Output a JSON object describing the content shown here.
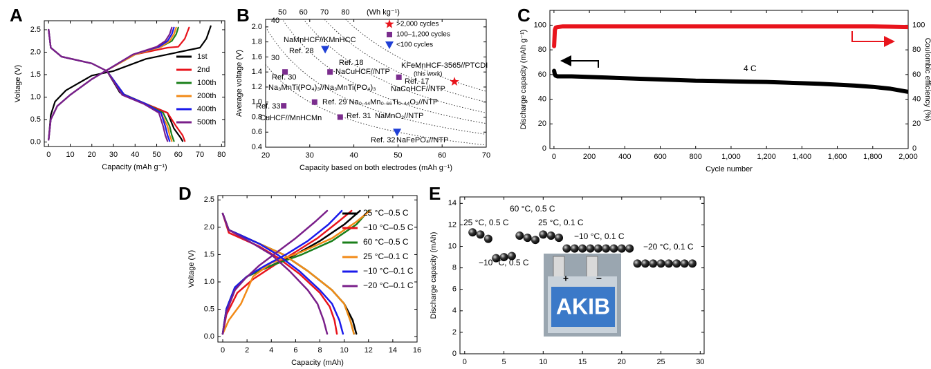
{
  "chart_data": [
    {
      "type": "line",
      "panel": "A",
      "xlabel": "Capacity (mAh g⁻¹)",
      "ylabel": "Voltage (V)",
      "xlim": [
        -2,
        81.5
      ],
      "ylim": [
        -0.1,
        2.7
      ],
      "xticks": [
        0,
        10,
        20,
        30,
        40,
        50,
        60,
        70,
        80
      ],
      "yticks": [
        {
          "value": 0,
          "label": "0.0"
        },
        0.5,
        {
          "value": 1,
          "label": "1.0"
        },
        1.5,
        {
          "value": 2,
          "label": "2.0"
        },
        2.5
      ],
      "legend": "upper right",
      "series": [
        {
          "name": "1st",
          "color": "#000000",
          "x": [
            0,
            1,
            3,
            8,
            20,
            30,
            45,
            60,
            70,
            73,
            75,
            null,
            0,
            1,
            6,
            20,
            27,
            33,
            45,
            55,
            58,
            61,
            62
          ],
          "values": [
            0.05,
            0.6,
            0.9,
            1.15,
            1.48,
            1.58,
            1.85,
            2.0,
            2.1,
            2.3,
            2.58,
            null,
            2.5,
            2.1,
            1.9,
            1.75,
            1.58,
            1.1,
            0.85,
            0.65,
            0.3,
            0.1,
            0.02
          ]
        },
        {
          "name": "2nd",
          "color": "#e8141c",
          "x": [
            0,
            1,
            4,
            10,
            20,
            27,
            40,
            55,
            60,
            63,
            65,
            null,
            0,
            1,
            6,
            20,
            27,
            35,
            45,
            55,
            59,
            62,
            63
          ],
          "values": [
            0.05,
            0.5,
            0.8,
            1.05,
            1.4,
            1.6,
            1.95,
            2.1,
            2.12,
            2.3,
            2.55,
            null,
            2.5,
            2.1,
            1.9,
            1.75,
            1.58,
            1.05,
            0.85,
            0.65,
            0.35,
            0.15,
            0.02
          ]
        },
        {
          "name": "100th",
          "color": "#1a7f1a",
          "x": [
            0,
            1,
            4,
            10,
            20,
            27,
            40,
            52,
            57,
            59,
            60,
            null,
            0,
            1,
            6,
            20,
            27,
            35,
            45,
            53,
            56,
            57,
            58
          ],
          "values": [
            0.05,
            0.5,
            0.8,
            1.05,
            1.4,
            1.6,
            1.95,
            2.12,
            2.25,
            2.4,
            2.55,
            null,
            2.5,
            2.1,
            1.9,
            1.75,
            1.58,
            1.05,
            0.85,
            0.65,
            0.35,
            0.15,
            0.02
          ]
        },
        {
          "name": "200th",
          "color": "#f28a17",
          "x": [
            0,
            1,
            4,
            10,
            20,
            27,
            40,
            52,
            56,
            58,
            59,
            null,
            0,
            1,
            6,
            20,
            27,
            35,
            45,
            52,
            55,
            56,
            57
          ],
          "values": [
            0.05,
            0.5,
            0.8,
            1.05,
            1.4,
            1.6,
            1.95,
            2.12,
            2.25,
            2.4,
            2.55,
            null,
            2.5,
            2.1,
            1.9,
            1.75,
            1.58,
            1.05,
            0.85,
            0.65,
            0.35,
            0.15,
            0.02
          ]
        },
        {
          "name": "400th",
          "color": "#1a1aeb",
          "x": [
            0,
            1,
            4,
            10,
            20,
            27,
            39,
            51,
            55,
            57,
            58,
            null,
            0,
            1,
            6,
            20,
            27,
            35,
            45,
            52,
            54,
            55,
            56
          ],
          "values": [
            0.05,
            0.5,
            0.8,
            1.05,
            1.4,
            1.6,
            1.95,
            2.12,
            2.25,
            2.4,
            2.55,
            null,
            2.5,
            2.1,
            1.9,
            1.75,
            1.58,
            1.05,
            0.85,
            0.65,
            0.35,
            0.15,
            0.02
          ]
        },
        {
          "name": "500th",
          "color": "#7a1f8a",
          "x": [
            0,
            1,
            4,
            10,
            20,
            27,
            39,
            50,
            54,
            56,
            57,
            null,
            0,
            1,
            6,
            20,
            27,
            34,
            44,
            51,
            53,
            54,
            55
          ],
          "values": [
            0.05,
            0.5,
            0.8,
            1.05,
            1.4,
            1.6,
            1.95,
            2.12,
            2.25,
            2.4,
            2.55,
            null,
            2.5,
            2.1,
            1.9,
            1.75,
            1.58,
            1.05,
            0.85,
            0.65,
            0.35,
            0.15,
            0.02
          ]
        }
      ]
    },
    {
      "type": "scatter",
      "panel": "B",
      "xlabel": "Capacity based on both electrodes (mAh g⁻¹)",
      "ylabel": "Average voltage (V)",
      "x2label": "(Wh kg⁻¹)",
      "xlim": [
        20,
        70
      ],
      "ylim": [
        0.4,
        2.1
      ],
      "xticks": [
        20,
        30,
        40,
        50,
        60,
        70
      ],
      "yticks": [
        0.4,
        0.6,
        0.8,
        {
          "value": 1,
          "label": "1.0"
        },
        1.2,
        1.4,
        1.6,
        1.8,
        {
          "value": 2,
          "label": "2.0"
        }
      ],
      "contours": [
        30,
        40,
        50,
        60,
        70,
        80
      ],
      "legend": "upper right",
      "groups": [
        {
          "name": ">2,000 cycles",
          "color": "#e8141c",
          "marker": "star"
        },
        {
          "name": "100–1,200 cycles",
          "color": "#7b2d8e",
          "marker": "square"
        },
        {
          "name": "<100 cycles",
          "color": "#1f3fd6",
          "marker": "triangle"
        }
      ],
      "points": [
        {
          "x": 33.5,
          "y": 1.7,
          "group": 2,
          "labels": [
            "NaMnHCF//KMnHCC",
            "Ref. 28"
          ]
        },
        {
          "x": 34.6,
          "y": 1.4,
          "group": 1,
          "labels": [
            "Ref. 18",
            "NaCuHCF//NTP"
          ]
        },
        {
          "x": 24.4,
          "y": 1.4,
          "group": 1,
          "labels": [
            "Ref. 30",
            "Na₃MnTi(PO₄)₃//Na₃MnTi(PO₄)₃"
          ]
        },
        {
          "x": 50.2,
          "y": 1.33,
          "group": 1,
          "labels": [
            "Ref. 17",
            "NaCoHCF//NTP"
          ]
        },
        {
          "x": 62.8,
          "y": 1.27,
          "group": 0,
          "labels": [
            "KFeMnHCF-3565//PTCDI",
            "(this work)"
          ]
        },
        {
          "x": 24.1,
          "y": 0.95,
          "group": 1,
          "labels": [
            "Ref. 33",
            "CuHCF//MnHCMn"
          ]
        },
        {
          "x": 31.1,
          "y": 1.0,
          "group": 1,
          "labels": [
            "Ref. 29 Na₀.₄₄Mn₀.₆₆Ti₀.₄₄O₂//NTP"
          ]
        },
        {
          "x": 36.9,
          "y": 0.8,
          "group": 1,
          "labels": [
            "Ref. 31",
            "NaMnO₂//NTP"
          ]
        },
        {
          "x": 49.8,
          "y": 0.6,
          "group": 2,
          "labels": [
            "Ref. 32",
            "NaFePO₄//NTP"
          ]
        }
      ]
    },
    {
      "type": "line",
      "panel": "C",
      "xlabel": "Cycle number",
      "ylabel": "Discharge capacity (mAh g⁻¹)",
      "y2label": "Coulombic efficiency (%)",
      "xlim": [
        -23,
        2000
      ],
      "ylim": [
        0,
        112
      ],
      "y2lim": [
        0,
        112
      ],
      "xticks": [
        0,
        200,
        400,
        600,
        800,
        {
          "value": 1000,
          "label": "1,000"
        },
        {
          "value": 1200,
          "label": "1,200"
        },
        {
          "value": 1400,
          "label": "1,400"
        },
        {
          "value": 1600,
          "label": "1,600"
        },
        {
          "value": 1800,
          "label": "1,800"
        },
        {
          "value": 2000,
          "label": "2,000"
        }
      ],
      "yticks": [
        0,
        20,
        40,
        60,
        80,
        100
      ],
      "y2ticks": [
        0,
        20,
        40,
        60,
        80,
        100
      ],
      "annotations": [
        "4 C"
      ],
      "series": [
        {
          "name": "Discharge capacity",
          "color": "#000000",
          "x": [
            1,
            5,
            10,
            20,
            50,
            100,
            200,
            300,
            400,
            500,
            600,
            700,
            800,
            900,
            1000,
            1100,
            1200,
            1300,
            1400,
            1500,
            1600,
            1700,
            1800,
            1900,
            2000
          ],
          "values": [
            63,
            60,
            59,
            58.5,
            58.5,
            58.5,
            58,
            57.5,
            57,
            56.5,
            56,
            55.5,
            55,
            54.8,
            54.5,
            54.2,
            54,
            53.5,
            53,
            52.5,
            51.8,
            51,
            50,
            48.5,
            46
          ]
        },
        {
          "name": "Coulombic efficiency",
          "color": "#e8141c",
          "axis": "y2",
          "x": [
            1,
            5,
            10,
            20,
            50,
            100,
            200,
            300,
            400,
            500,
            600,
            700,
            800,
            900,
            1000,
            1100,
            1200,
            1300,
            1400,
            1500,
            1600,
            1700,
            1800,
            1900,
            2000
          ],
          "values": [
            83,
            96,
            98,
            98.5,
            99,
            99,
            99,
            99,
            99,
            99,
            99,
            99,
            99,
            99,
            99,
            99,
            99,
            99,
            99,
            99,
            99,
            99,
            99,
            98.8,
            98.5
          ]
        }
      ]
    },
    {
      "type": "line",
      "panel": "D",
      "xlabel": "Capacity (mAh)",
      "ylabel": "Voltage (V)",
      "xlim": [
        -0.4,
        16
      ],
      "ylim": [
        -0.1,
        2.58
      ],
      "xticks": [
        0,
        2,
        4,
        6,
        8,
        10,
        12,
        14,
        16
      ],
      "yticks": [
        {
          "value": 0,
          "label": "0.0"
        },
        0.5,
        {
          "value": 1,
          "label": "1.0"
        },
        1.5,
        {
          "value": 2,
          "label": "2.0"
        },
        2.5
      ],
      "legend": "upper right",
      "series": [
        {
          "name": "25 °C–0.5 C",
          "color": "#000000",
          "x": [
            0,
            0.3,
            1,
            2,
            4,
            6,
            8,
            10,
            11.3,
            null,
            0,
            0.5,
            1.5,
            3,
            5,
            7,
            9,
            10,
            10.7,
            11
          ],
          "values": [
            0.05,
            0.5,
            0.9,
            1.1,
            1.3,
            1.5,
            1.75,
            2.05,
            2.3,
            null,
            2.25,
            1.95,
            1.85,
            1.7,
            1.5,
            1.2,
            0.85,
            0.6,
            0.3,
            0.05
          ]
        },
        {
          "name": "−10 °C–0.5 C",
          "color": "#e8141c",
          "x": [
            0,
            0.3,
            1.2,
            2.5,
            4.2,
            6,
            7.8,
            9.5,
            10.6,
            null,
            0,
            0.5,
            1.5,
            3,
            4.5,
            6.3,
            8,
            8.8,
            9.2,
            9.4
          ],
          "values": [
            0.05,
            0.4,
            0.8,
            1.05,
            1.3,
            1.55,
            1.8,
            2.1,
            2.3,
            null,
            2.25,
            1.9,
            1.8,
            1.65,
            1.45,
            1.15,
            0.8,
            0.55,
            0.3,
            0.05
          ]
        },
        {
          "name": "60 °C–0.5 C",
          "color": "#1a7f1a",
          "x": [
            0,
            0.3,
            1,
            2,
            4,
            6.5,
            9,
            11,
            12,
            null,
            0,
            0.5,
            1.5,
            3,
            5,
            7,
            9,
            10,
            10.5,
            10.8
          ],
          "values": [
            0.05,
            0.5,
            0.9,
            1.1,
            1.3,
            1.5,
            1.75,
            2.05,
            2.3,
            null,
            2.25,
            1.95,
            1.85,
            1.7,
            1.5,
            1.2,
            0.85,
            0.6,
            0.3,
            0.05
          ]
        },
        {
          "name": "25 °C–0.1 C",
          "color": "#f28a17",
          "x": [
            0,
            0.5,
            1.5,
            2.5,
            4,
            6.5,
            9,
            11,
            12.1,
            null,
            0,
            0.5,
            1.5,
            3,
            5,
            7,
            9,
            10,
            10.5,
            10.8
          ],
          "values": [
            0.05,
            0.3,
            0.6,
            1.1,
            1.35,
            1.55,
            1.8,
            2.1,
            2.3,
            null,
            2.25,
            1.95,
            1.85,
            1.7,
            1.5,
            1.2,
            0.85,
            0.6,
            0.3,
            0.05
          ]
        },
        {
          "name": "−10 °C–0.1 C",
          "color": "#1a1aeb",
          "x": [
            0,
            0.3,
            1,
            2,
            3.5,
            5.2,
            7,
            8.7,
            9.8,
            null,
            0,
            0.5,
            1.5,
            3,
            4.5,
            6.3,
            8,
            9,
            9.6,
            9.9
          ],
          "values": [
            0.05,
            0.5,
            0.9,
            1.1,
            1.3,
            1.5,
            1.75,
            2.05,
            2.3,
            null,
            2.25,
            1.95,
            1.85,
            1.7,
            1.5,
            1.2,
            0.85,
            0.6,
            0.3,
            0.05
          ]
        },
        {
          "name": "−20 °C–0.1 C",
          "color": "#7a1f8a",
          "x": [
            0,
            0.3,
            1,
            1.8,
            3,
            4.5,
            6,
            7.6,
            8.6,
            null,
            0,
            0.5,
            1.3,
            2.5,
            4,
            5.5,
            7,
            7.8,
            8.3,
            8.6
          ],
          "values": [
            0.05,
            0.45,
            0.85,
            1.05,
            1.3,
            1.55,
            1.8,
            2.1,
            2.3,
            null,
            2.25,
            1.95,
            1.85,
            1.7,
            1.5,
            1.2,
            0.85,
            0.6,
            0.3,
            0.05
          ]
        }
      ]
    },
    {
      "type": "scatter",
      "panel": "E",
      "xlabel": "Cycle number",
      "ylabel": "Discharge capacity (mAh)",
      "xlim": [
        -0.6,
        30.5
      ],
      "ylim": [
        0,
        14.6
      ],
      "xticks": [
        0,
        5,
        10,
        15,
        20,
        25,
        30
      ],
      "yticks": [
        0,
        2,
        4,
        6,
        8,
        10,
        12,
        14
      ],
      "annotations": [
        "25 °C, 0.5 C",
        "60 °C, 0.5 C",
        "−10 °C, 0.5 C",
        "25 °C, 0.1 C",
        "−10 °C, 0.1 C",
        "−20 °C, 0.1 C"
      ],
      "inset": {
        "text": "AKIB",
        "plus": "+",
        "minus": "−"
      },
      "x": [
        1,
        2,
        3,
        4,
        5,
        6,
        7,
        8,
        9,
        10,
        11,
        12,
        13,
        14,
        15,
        16,
        17,
        18,
        19,
        20,
        21,
        22,
        23,
        24,
        25,
        26,
        27,
        28,
        29
      ],
      "values": [
        11.3,
        11.1,
        10.7,
        8.9,
        9.0,
        9.1,
        11.0,
        10.8,
        10.6,
        11.1,
        11.0,
        10.8,
        9.8,
        9.8,
        9.8,
        9.8,
        9.8,
        9.8,
        9.8,
        9.8,
        9.8,
        8.4,
        8.4,
        8.4,
        8.4,
        8.4,
        8.4,
        8.4,
        8.4
      ]
    }
  ]
}
